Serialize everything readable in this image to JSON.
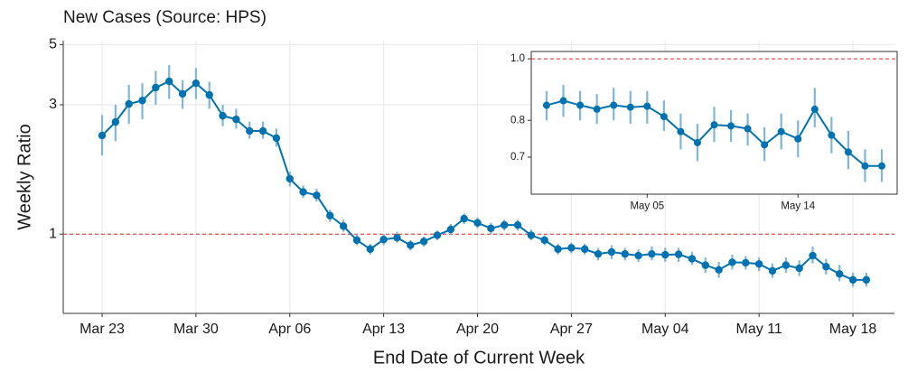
{
  "chart_data": [
    {
      "type": "line",
      "title": "New Cases (Source: HPS)",
      "x_label": "End Date of Current Week",
      "y_label": "Weekly Ratio",
      "log_y": true,
      "grid": true,
      "hline": 1,
      "hline_color": "#e8262a",
      "color": "#0072b2",
      "error_color": "#7fb6db",
      "categories": [
        "Mar 23",
        null,
        null,
        null,
        null,
        null,
        null,
        "Mar 30",
        null,
        null,
        null,
        null,
        null,
        null,
        "Apr 06",
        null,
        null,
        null,
        null,
        null,
        null,
        "Apr 13",
        null,
        null,
        null,
        null,
        null,
        null,
        "Apr 20",
        null,
        null,
        null,
        null,
        null,
        null,
        "Apr 27",
        null,
        null,
        null,
        null,
        null,
        null,
        "May 04",
        null,
        null,
        null,
        null,
        null,
        null,
        "May 11",
        null,
        null,
        null,
        null,
        null,
        null,
        "May 18",
        null
      ],
      "values": [
        2.31,
        2.59,
        3.02,
        3.11,
        3.47,
        3.66,
        3.29,
        3.6,
        3.26,
        2.73,
        2.65,
        2.4,
        2.4,
        2.26,
        1.6,
        1.43,
        1.39,
        1.17,
        1.07,
        0.95,
        0.88,
        0.955,
        0.97,
        0.91,
        0.94,
        0.99,
        1.04,
        1.14,
        1.1,
        1.05,
        1.08,
        1.08,
        0.99,
        0.95,
        0.88,
        0.89,
        0.88,
        0.845,
        0.859,
        0.845,
        0.833,
        0.845,
        0.839,
        0.842,
        0.811,
        0.768,
        0.738,
        0.787,
        0.784,
        0.776,
        0.732,
        0.768,
        0.748,
        0.833,
        0.758,
        0.713,
        0.678,
        0.678
      ],
      "lower": [
        1.95,
        2.2,
        2.55,
        2.65,
        3.0,
        3.15,
        2.9,
        3.15,
        2.9,
        2.5,
        2.45,
        2.25,
        2.25,
        2.1,
        1.5,
        1.36,
        1.32,
        1.11,
        1.02,
        0.91,
        0.84,
        0.91,
        0.93,
        0.87,
        0.9,
        0.95,
        1.0,
        1.09,
        1.05,
        1.0,
        1.03,
        1.03,
        0.95,
        0.91,
        0.84,
        0.85,
        0.84,
        0.8,
        0.81,
        0.8,
        0.79,
        0.8,
        0.79,
        0.79,
        0.77,
        0.72,
        0.69,
        0.74,
        0.74,
        0.73,
        0.69,
        0.72,
        0.7,
        0.78,
        0.71,
        0.67,
        0.64,
        0.64
      ],
      "upper": [
        2.75,
        3.0,
        3.55,
        3.6,
        4.0,
        4.2,
        3.7,
        4.1,
        3.65,
        3.0,
        2.9,
        2.6,
        2.6,
        2.45,
        1.7,
        1.51,
        1.47,
        1.23,
        1.13,
        1.0,
        0.92,
        1.0,
        1.02,
        0.95,
        0.98,
        1.03,
        1.09,
        1.19,
        1.15,
        1.1,
        1.13,
        1.13,
        1.04,
        0.99,
        0.92,
        0.93,
        0.92,
        0.89,
        0.91,
        0.89,
        0.88,
        0.9,
        0.89,
        0.89,
        0.86,
        0.82,
        0.79,
        0.84,
        0.83,
        0.82,
        0.78,
        0.82,
        0.8,
        0.9,
        0.81,
        0.77,
        0.72,
        0.72
      ],
      "ylim": [
        0.51,
        5.17
      ],
      "yticks": [
        1,
        3,
        5
      ]
    },
    {
      "type": "line",
      "log_y": true,
      "grid": false,
      "hline": 1,
      "hline_color": "#e8262a",
      "color": "#0072b2",
      "error_color": "#7fb6db",
      "categories": [
        null,
        null,
        null,
        null,
        null,
        null,
        "May 05",
        null,
        null,
        null,
        null,
        null,
        null,
        null,
        null,
        "May 14",
        null,
        null,
        null,
        null,
        null
      ],
      "values": [
        0.845,
        0.859,
        0.845,
        0.833,
        0.845,
        0.839,
        0.842,
        0.811,
        0.768,
        0.738,
        0.787,
        0.784,
        0.776,
        0.732,
        0.768,
        0.748,
        0.833,
        0.758,
        0.713,
        0.678,
        0.678
      ],
      "lower": [
        0.8,
        0.81,
        0.8,
        0.79,
        0.8,
        0.79,
        0.79,
        0.77,
        0.72,
        0.69,
        0.74,
        0.74,
        0.73,
        0.69,
        0.72,
        0.7,
        0.78,
        0.71,
        0.67,
        0.64,
        0.64
      ],
      "upper": [
        0.89,
        0.91,
        0.89,
        0.88,
        0.9,
        0.89,
        0.89,
        0.86,
        0.82,
        0.79,
        0.84,
        0.83,
        0.82,
        0.78,
        0.82,
        0.8,
        0.9,
        0.81,
        0.77,
        0.72,
        0.72
      ],
      "ylim": [
        0.612,
        1.027
      ],
      "yticks": [
        0.7,
        0.8,
        {
          "value": 1,
          "label": "1.0"
        }
      ]
    }
  ]
}
